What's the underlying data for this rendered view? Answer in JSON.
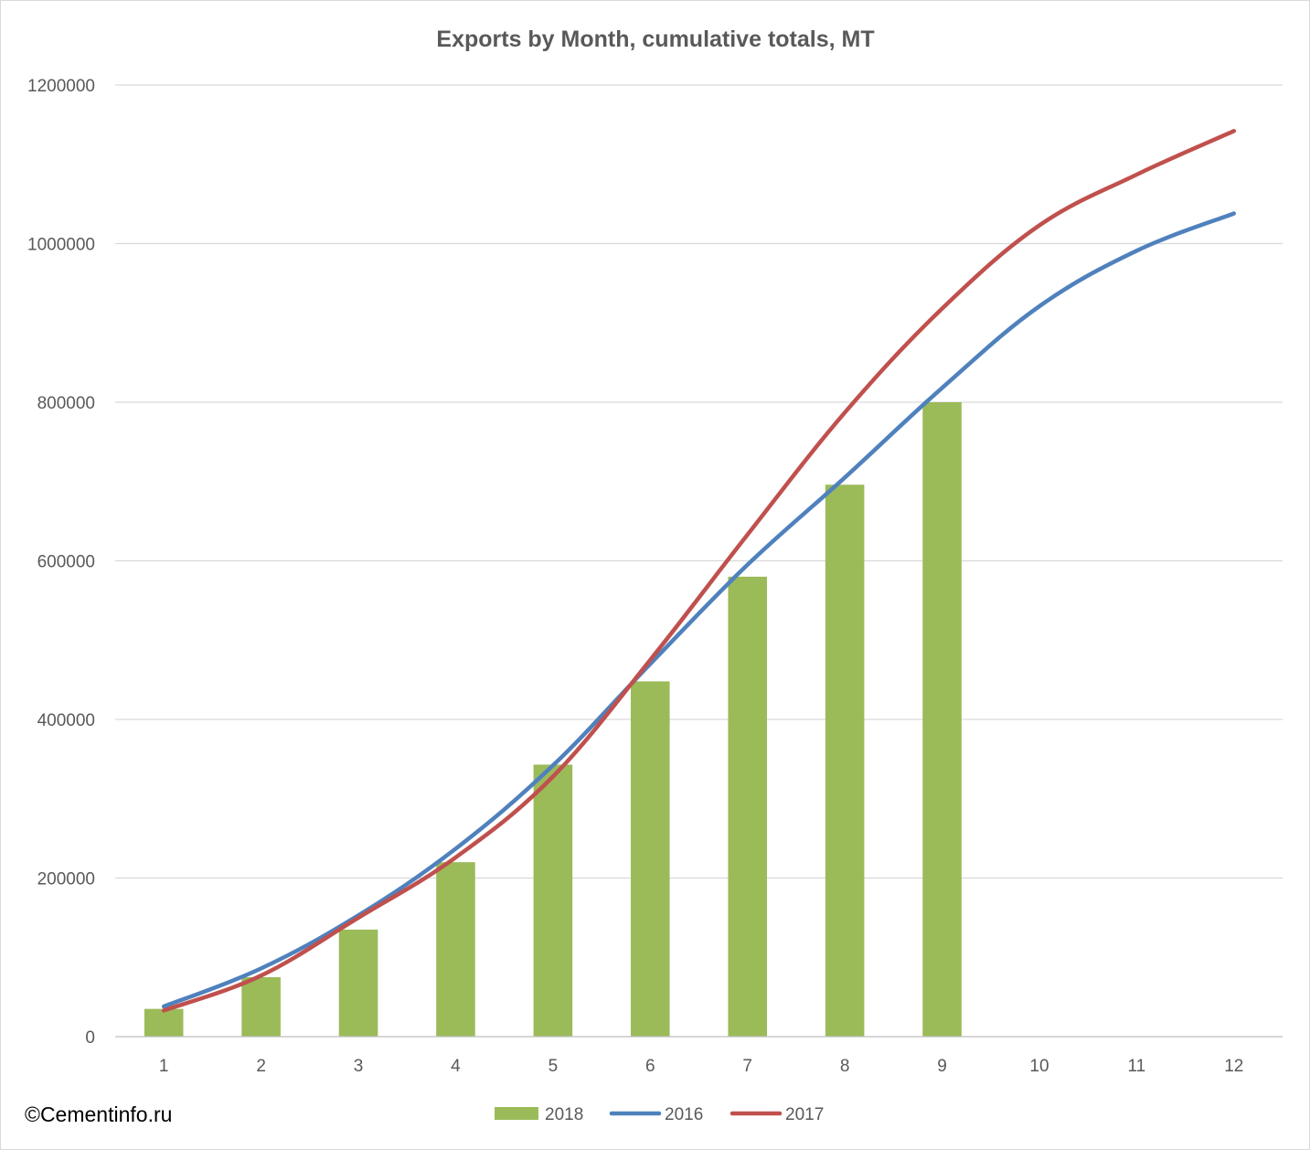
{
  "watermark": "©Cementinfo.ru",
  "chart_data": {
    "type": "bar+line",
    "title": "Exports by Month, cumulative totals, MT",
    "xlabel": "",
    "ylabel": "",
    "categories": [
      "1",
      "2",
      "3",
      "4",
      "5",
      "6",
      "7",
      "8",
      "9",
      "10",
      "11",
      "12"
    ],
    "ylim": [
      0,
      1200000
    ],
    "yticks": [
      "0",
      "200000",
      "400000",
      "600000",
      "800000",
      "1000000",
      "1200000"
    ],
    "grid": true,
    "legend_position": "bottom",
    "series": [
      {
        "name": "2018",
        "kind": "bar",
        "color": "#9bbb59",
        "values": [
          35000,
          75000,
          135000,
          220000,
          343000,
          448000,
          580000,
          696000,
          800000,
          null,
          null,
          null
        ]
      },
      {
        "name": "2016",
        "kind": "line",
        "color": "#4f81bd",
        "values": [
          38000,
          86000,
          153000,
          237000,
          342000,
          470000,
          595000,
          705000,
          818000,
          921000,
          991000,
          1038000
        ]
      },
      {
        "name": "2017",
        "kind": "line",
        "color": "#c0504d",
        "values": [
          33000,
          77000,
          150000,
          226000,
          328000,
          475000,
          633000,
          787000,
          918000,
          1023000,
          1087000,
          1142000
        ]
      }
    ]
  }
}
